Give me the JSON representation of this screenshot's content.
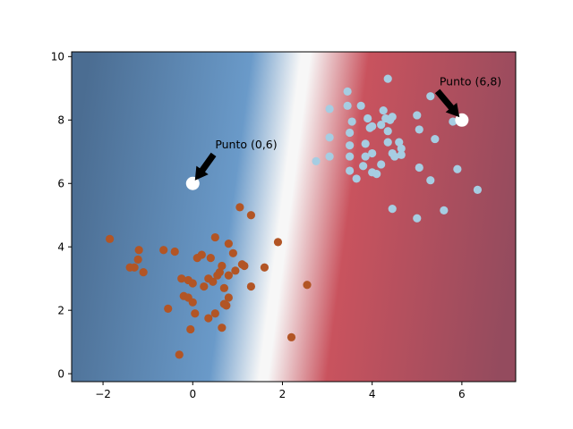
{
  "chart_data": {
    "type": "scatter",
    "title": "",
    "xlabel": "",
    "ylabel": "",
    "xlim": [
      -2.7,
      7.2
    ],
    "ylim": [
      -0.25,
      10.15
    ],
    "grid": false,
    "x_ticks": [
      -2,
      0,
      2,
      4,
      6
    ],
    "y_ticks": [
      0,
      2,
      4,
      6,
      8,
      10
    ],
    "x_tick_labels": [
      "−2",
      "0",
      "2",
      "4",
      "6"
    ],
    "y_tick_labels": [
      "0",
      "2",
      "4",
      "6",
      "8",
      "10"
    ],
    "background": {
      "description": "decision function shading, blue on left to red on right, white boundary",
      "colors": {
        "left": "#4b6d92",
        "mid_blue": "#6a9ac9",
        "white": "#f7f7f7",
        "mid_red": "#c9535e",
        "right": "#944b5e"
      }
    },
    "series": [
      {
        "color": "#b25525",
        "points": [
          [
            -1.85,
            4.25
          ],
          [
            -1.2,
            3.9
          ],
          [
            -1.22,
            3.6
          ],
          [
            -1.3,
            3.35
          ],
          [
            -1.1,
            3.2
          ],
          [
            -1.4,
            3.35
          ],
          [
            -0.65,
            3.9
          ],
          [
            -0.4,
            3.85
          ],
          [
            -0.55,
            2.05
          ],
          [
            -0.3,
            0.6
          ],
          [
            -0.25,
            3.0
          ],
          [
            -0.1,
            2.95
          ],
          [
            0.0,
            2.85
          ],
          [
            0.1,
            3.65
          ],
          [
            0.2,
            3.75
          ],
          [
            0.35,
            3.0
          ],
          [
            0.4,
            3.65
          ],
          [
            0.5,
            4.3
          ],
          [
            0.55,
            3.1
          ],
          [
            0.6,
            3.2
          ],
          [
            0.65,
            3.4
          ],
          [
            0.7,
            2.7
          ],
          [
            0.45,
            2.9
          ],
          [
            0.25,
            2.75
          ],
          [
            -0.2,
            2.45
          ],
          [
            -0.1,
            2.4
          ],
          [
            0.0,
            2.25
          ],
          [
            0.05,
            1.9
          ],
          [
            -0.05,
            1.4
          ],
          [
            0.35,
            1.75
          ],
          [
            0.5,
            1.9
          ],
          [
            0.65,
            1.45
          ],
          [
            0.75,
            2.15
          ],
          [
            0.8,
            2.4
          ],
          [
            0.8,
            3.1
          ],
          [
            0.8,
            4.1
          ],
          [
            0.9,
            3.8
          ],
          [
            0.95,
            3.25
          ],
          [
            1.05,
            5.25
          ],
          [
            1.1,
            3.45
          ],
          [
            1.3,
            5.0
          ],
          [
            1.3,
            2.75
          ],
          [
            1.15,
            3.4
          ],
          [
            1.6,
            3.35
          ],
          [
            1.9,
            4.15
          ],
          [
            2.2,
            1.15
          ],
          [
            2.55,
            2.8
          ],
          [
            0.7,
            2.2
          ]
        ]
      },
      {
        "color": "#a6cde2",
        "points": [
          [
            2.75,
            6.7
          ],
          [
            3.05,
            8.35
          ],
          [
            3.05,
            7.45
          ],
          [
            3.05,
            6.85
          ],
          [
            3.45,
            8.9
          ],
          [
            3.45,
            8.45
          ],
          [
            3.5,
            7.6
          ],
          [
            3.55,
            7.95
          ],
          [
            3.5,
            7.2
          ],
          [
            3.5,
            6.85
          ],
          [
            3.5,
            6.4
          ],
          [
            3.65,
            6.15
          ],
          [
            3.75,
            8.45
          ],
          [
            3.8,
            6.55
          ],
          [
            3.85,
            7.25
          ],
          [
            3.85,
            6.85
          ],
          [
            3.9,
            8.05
          ],
          [
            3.95,
            7.75
          ],
          [
            4.0,
            6.95
          ],
          [
            4.0,
            7.8
          ],
          [
            4.0,
            6.35
          ],
          [
            4.1,
            6.3
          ],
          [
            4.2,
            7.85
          ],
          [
            4.2,
            6.6
          ],
          [
            4.25,
            8.3
          ],
          [
            4.3,
            8.05
          ],
          [
            4.35,
            7.65
          ],
          [
            4.35,
            7.3
          ],
          [
            4.35,
            9.3
          ],
          [
            4.4,
            8.0
          ],
          [
            4.45,
            8.1
          ],
          [
            4.45,
            6.95
          ],
          [
            4.5,
            6.85
          ],
          [
            4.45,
            5.2
          ],
          [
            4.6,
            7.3
          ],
          [
            4.65,
            7.1
          ],
          [
            4.65,
            6.9
          ],
          [
            5.0,
            8.15
          ],
          [
            5.05,
            7.7
          ],
          [
            5.05,
            6.5
          ],
          [
            5.0,
            4.9
          ],
          [
            5.3,
            6.1
          ],
          [
            5.3,
            8.75
          ],
          [
            5.4,
            7.4
          ],
          [
            5.6,
            5.15
          ],
          [
            5.8,
            7.95
          ],
          [
            5.9,
            6.45
          ],
          [
            6.35,
            5.8
          ]
        ]
      }
    ],
    "highlighted_points": [
      {
        "x": 0,
        "y": 6,
        "label": "Punto (0,6)",
        "text_x": 0.5,
        "text_y": 7.1
      },
      {
        "x": 6,
        "y": 8,
        "label": "Punto (6,8)",
        "text_x": 5.5,
        "text_y": 9.1
      }
    ]
  }
}
